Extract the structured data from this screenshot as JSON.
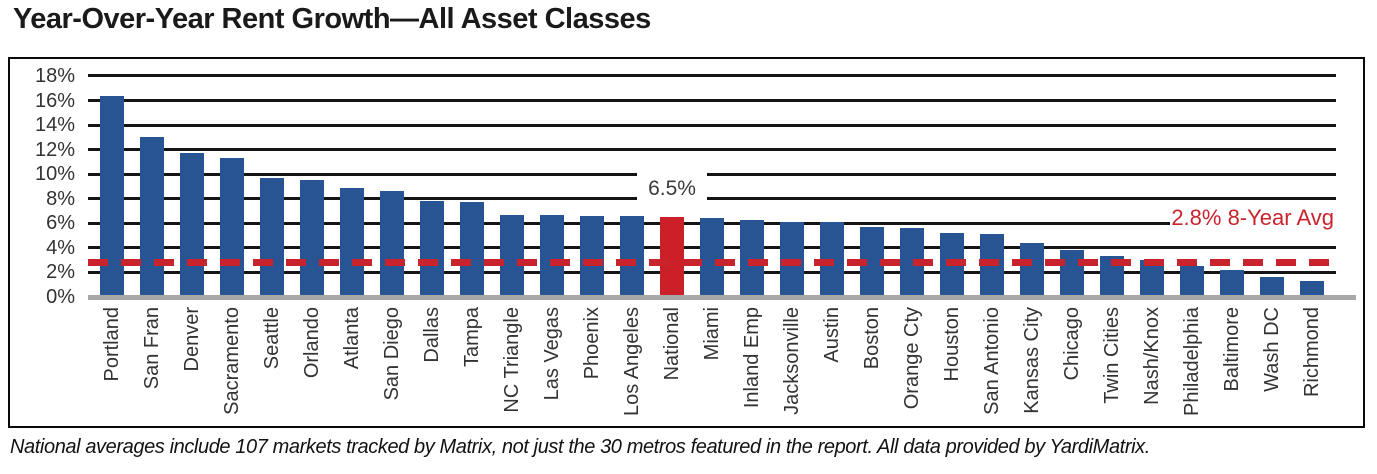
{
  "page": {
    "title": "Year-Over-Year Rent Growth—All Asset Classes",
    "footnote": "National averages include 107 markets tracked by Matrix, not just the 30 metros featured in the report. All data provided by YardiMatrix."
  },
  "chart_data": {
    "type": "bar",
    "title": "Year-Over-Year Rent Growth—All Asset Classes",
    "categories": [
      "Portland",
      "San Fran",
      "Denver",
      "Sacramento",
      "Seattle",
      "Orlando",
      "Atlanta",
      "San Diego",
      "Dallas",
      "Tampa",
      "NC Triangle",
      "Las Vegas",
      "Phoenix",
      "Los Angeles",
      "National",
      "Miami",
      "Inland Emp",
      "Jacksonville",
      "Austin",
      "Boston",
      "Orange Cty",
      "Houston",
      "San Antonio",
      "Kansas City",
      "Chicago",
      "Twin Cities",
      "Nash/Knox",
      "Philadelphia",
      "Baltimore",
      "Wash DC",
      "Richmond"
    ],
    "values": [
      16.4,
      13.0,
      11.7,
      11.3,
      9.7,
      9.5,
      8.9,
      8.6,
      7.8,
      7.7,
      6.7,
      6.7,
      6.6,
      6.6,
      6.5,
      6.4,
      6.3,
      6.1,
      6.1,
      5.7,
      5.6,
      5.2,
      5.1,
      4.4,
      3.8,
      3.3,
      3.0,
      2.5,
      2.2,
      1.6,
      1.3
    ],
    "highlight": {
      "category": "National",
      "index": 14,
      "label": "6.5%"
    },
    "reference_line": {
      "value": 2.8,
      "label": "2.8% 8-Year Avg"
    },
    "y_ticks": [
      {
        "value": 0,
        "label": "0%"
      },
      {
        "value": 2,
        "label": "2%"
      },
      {
        "value": 4,
        "label": "4%"
      },
      {
        "value": 6,
        "label": "6%"
      },
      {
        "value": 8,
        "label": "8%"
      },
      {
        "value": 10,
        "label": "10%"
      },
      {
        "value": 12,
        "label": "12%"
      },
      {
        "value": 14,
        "label": "14%"
      },
      {
        "value": 16,
        "label": "16%"
      },
      {
        "value": 18,
        "label": "18%"
      }
    ],
    "ylim": [
      0,
      18
    ],
    "grid": true,
    "legend": "none",
    "colors": {
      "bar": "#285494",
      "highlight_bar": "#CB2027",
      "reference_line": "#C9242D",
      "reference_label": "#C9242D",
      "gridline": "#151515",
      "zero_axis": "#A8A8A8",
      "axis_text": "#333333",
      "annotation_text": "#3A3A3A"
    }
  }
}
